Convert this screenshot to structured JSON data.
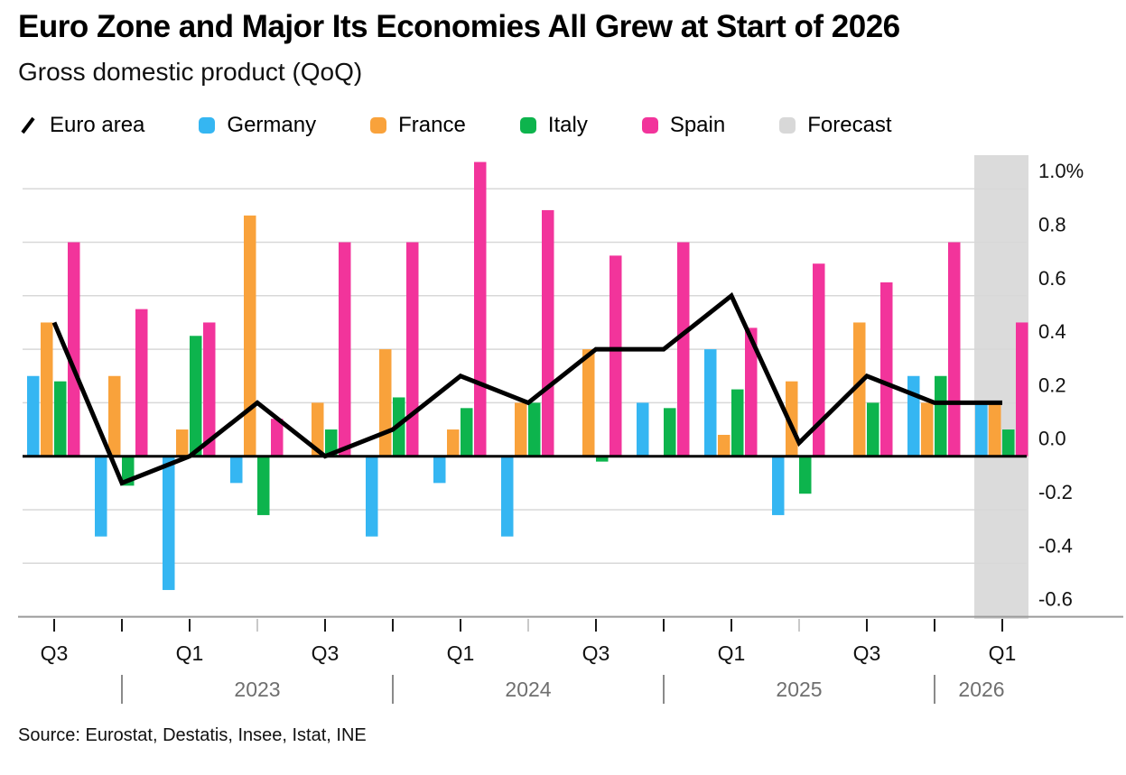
{
  "header": {
    "title": "Euro Zone and Major Its Economies All Grew at Start of 2026",
    "subtitle": "Gross domestic product (QoQ)"
  },
  "legend": {
    "items": [
      {
        "label": "Euro area",
        "swatch": "line",
        "color": "#000000"
      },
      {
        "label": "Germany",
        "swatch": "square",
        "color": "#35B6F2"
      },
      {
        "label": "France",
        "swatch": "square",
        "color": "#F9A23B"
      },
      {
        "label": "Italy",
        "swatch": "square",
        "color": "#0DB44D"
      },
      {
        "label": "Spain",
        "swatch": "square",
        "color": "#F2349B"
      },
      {
        "label": "Forecast",
        "swatch": "square",
        "color": "#D8D8D8"
      }
    ]
  },
  "chart_data": {
    "type": "bar",
    "title": "Euro Zone and Major Its Economies All Grew at Start of 2026",
    "subtitle": "Gross domestic product (QoQ)",
    "unit": "%",
    "grid": true,
    "legend_position": "top",
    "ylim": [
      -0.6,
      1.13
    ],
    "y_gridline_step": 0.2,
    "categories": [
      "Q3 2022",
      "Q4 2022",
      "Q1 2023",
      "Q2 2023",
      "Q3 2023",
      "Q4 2023",
      "Q1 2024",
      "Q2 2024",
      "Q3 2024",
      "Q4 2024",
      "Q1 2025",
      "Q2 2025",
      "Q3 2025",
      "Q4 2025",
      "Q1 2026"
    ],
    "x_tick_labels": [
      "Q3",
      "",
      "Q1",
      "",
      "Q3",
      "",
      "Q1",
      "",
      "Q3",
      "",
      "Q1",
      "",
      "Q3",
      "",
      "Q1"
    ],
    "light_tick_indices": [
      3,
      7,
      11
    ],
    "years": [
      {
        "label": "2023",
        "sep_index": 1
      },
      {
        "label": "2024",
        "sep_index": 5
      },
      {
        "label": "2025",
        "sep_index": 9
      },
      {
        "label": "2026",
        "sep_index": 13
      }
    ],
    "y_ticks": [
      {
        "label": "1.0%",
        "value": 1.0
      },
      {
        "label": "0.8",
        "value": 0.8
      },
      {
        "label": "0.6",
        "value": 0.6
      },
      {
        "label": "0.4",
        "value": 0.4
      },
      {
        "label": "0.2",
        "value": 0.2
      },
      {
        "label": "0.0",
        "value": 0.0
      },
      {
        "label": "-0.2",
        "value": -0.2
      },
      {
        "label": "-0.4",
        "value": -0.4
      },
      {
        "label": "-0.6",
        "value": -0.6
      }
    ],
    "series": [
      {
        "name": "Germany",
        "type": "bar",
        "color": "#35B6F2",
        "values": [
          0.3,
          -0.3,
          -0.5,
          -0.1,
          0,
          -0.3,
          -0.1,
          -0.3,
          0,
          0.2,
          0.4,
          -0.22,
          0,
          0.3,
          0.2
        ]
      },
      {
        "name": "France",
        "type": "bar",
        "color": "#F9A23B",
        "values": [
          0.5,
          0.3,
          0.1,
          0.9,
          0.2,
          0.4,
          0.1,
          0.2,
          0.4,
          0,
          0.08,
          0.28,
          0.5,
          0.2,
          0.2
        ]
      },
      {
        "name": "Italy",
        "type": "bar",
        "color": "#0DB44D",
        "values": [
          0.28,
          -0.11,
          0.45,
          -0.22,
          0.1,
          0.22,
          0.18,
          0.2,
          -0.02,
          0.18,
          0.25,
          -0.14,
          0.2,
          0.3,
          0.1
        ]
      },
      {
        "name": "Spain",
        "type": "bar",
        "color": "#F2349B",
        "values": [
          0.8,
          0.55,
          0.5,
          0.14,
          0.8,
          0.8,
          1.1,
          0.92,
          0.75,
          0.8,
          0.48,
          0.72,
          0.65,
          0.8,
          0.5
        ]
      },
      {
        "name": "Euro area",
        "type": "line",
        "color": "#000000",
        "values": [
          0.5,
          -0.1,
          0,
          0.2,
          0,
          0.1,
          0.3,
          0.2,
          0.4,
          0.4,
          0.6,
          0.05,
          0.3,
          0.2,
          0.2
        ]
      }
    ],
    "forecast": {
      "label": "Forecast",
      "start_quarter_index": 14,
      "color": "#DBDBDB"
    }
  },
  "source": {
    "text": "Source: Eurostat, Destatis, Insee, Istat, INE"
  }
}
